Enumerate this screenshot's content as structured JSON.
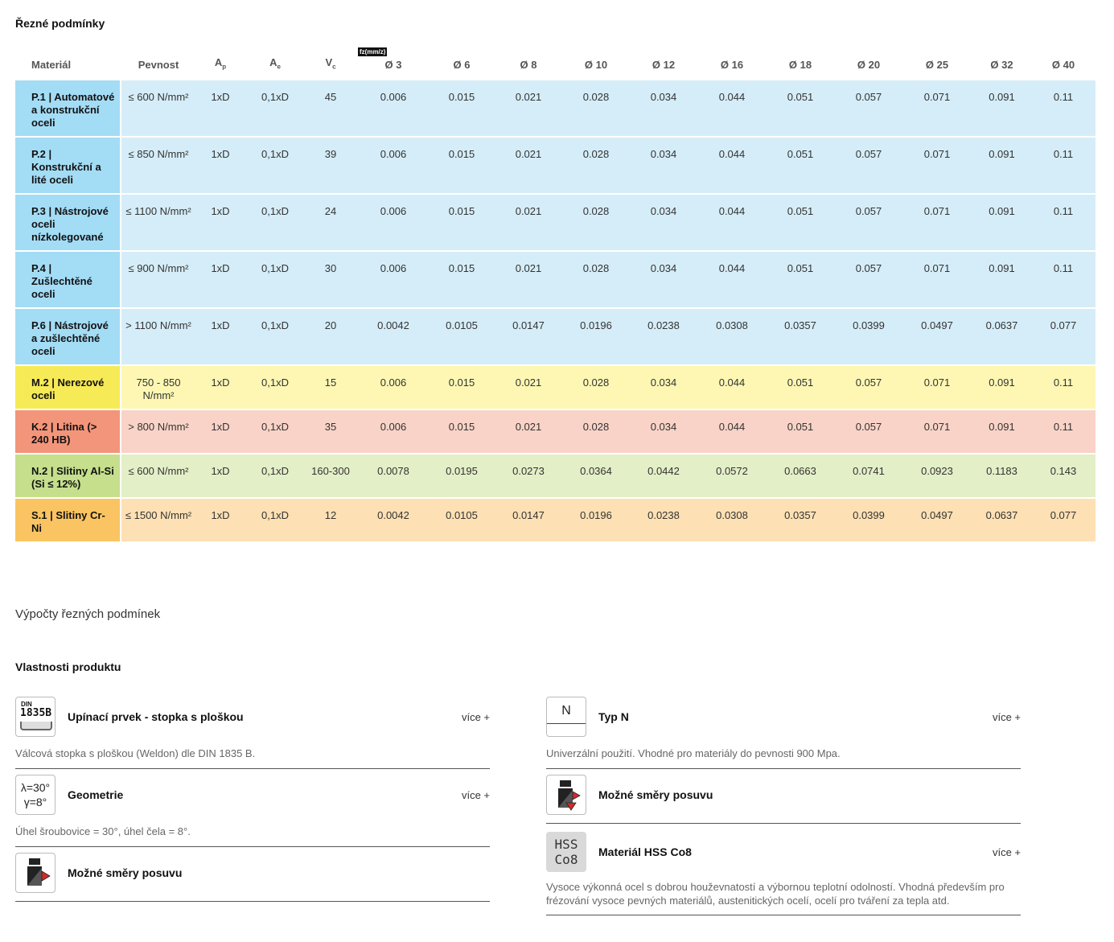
{
  "cutting": {
    "title": "Řezné podmínky",
    "headers": {
      "material": "Materiál",
      "strength": "Pevnost",
      "ap": "A",
      "ap_sub": "p",
      "ae": "A",
      "ae_sub": "e",
      "vc": "V",
      "vc_sub": "c",
      "fz_tag": "fz(mm/z)",
      "diameters": [
        "Ø 3",
        "Ø 6",
        "Ø 8",
        "Ø 10",
        "Ø 12",
        "Ø 16",
        "Ø 18",
        "Ø 20",
        "Ø 25",
        "Ø 32",
        "Ø 40"
      ]
    },
    "rows": [
      {
        "group": "blue",
        "material": "P.1 | Automatové a konstrukční oceli",
        "strength": "≤ 600 N/mm²",
        "ap": "1xD",
        "ae": "0,1xD",
        "vc": "45",
        "fz": [
          "0.006",
          "0.015",
          "0.021",
          "0.028",
          "0.034",
          "0.044",
          "0.051",
          "0.057",
          "0.071",
          "0.091",
          "0.11"
        ]
      },
      {
        "group": "blue",
        "material": "P.2 | Konstrukční a lité oceli",
        "strength": "≤ 850 N/mm²",
        "ap": "1xD",
        "ae": "0,1xD",
        "vc": "39",
        "fz": [
          "0.006",
          "0.015",
          "0.021",
          "0.028",
          "0.034",
          "0.044",
          "0.051",
          "0.057",
          "0.071",
          "0.091",
          "0.11"
        ]
      },
      {
        "group": "blue",
        "material": "P.3 | Nástrojové oceli nízkolegované",
        "strength": "≤ 1100 N/mm²",
        "ap": "1xD",
        "ae": "0,1xD",
        "vc": "24",
        "fz": [
          "0.006",
          "0.015",
          "0.021",
          "0.028",
          "0.034",
          "0.044",
          "0.051",
          "0.057",
          "0.071",
          "0.091",
          "0.11"
        ]
      },
      {
        "group": "blue",
        "material": "P.4 | Zušlechtěné oceli",
        "strength": "≤ 900 N/mm²",
        "ap": "1xD",
        "ae": "0,1xD",
        "vc": "30",
        "fz": [
          "0.006",
          "0.015",
          "0.021",
          "0.028",
          "0.034",
          "0.044",
          "0.051",
          "0.057",
          "0.071",
          "0.091",
          "0.11"
        ]
      },
      {
        "group": "blue",
        "material": "P.6 | Nástrojové a zušlechtěné oceli",
        "strength": "> 1100 N/mm²",
        "ap": "1xD",
        "ae": "0,1xD",
        "vc": "20",
        "fz": [
          "0.0042",
          "0.0105",
          "0.0147",
          "0.0196",
          "0.0238",
          "0.0308",
          "0.0357",
          "0.0399",
          "0.0497",
          "0.0637",
          "0.077"
        ]
      },
      {
        "group": "yellow",
        "material": "M.2 | Nerezové oceli",
        "strength": "750 - 850 N/mm²",
        "ap": "1xD",
        "ae": "0,1xD",
        "vc": "15",
        "fz": [
          "0.006",
          "0.015",
          "0.021",
          "0.028",
          "0.034",
          "0.044",
          "0.051",
          "0.057",
          "0.071",
          "0.091",
          "0.11"
        ]
      },
      {
        "group": "red",
        "material": "K.2 | Litina (> 240 HB)",
        "strength": "> 800 N/mm²",
        "ap": "1xD",
        "ae": "0,1xD",
        "vc": "35",
        "fz": [
          "0.006",
          "0.015",
          "0.021",
          "0.028",
          "0.034",
          "0.044",
          "0.051",
          "0.057",
          "0.071",
          "0.091",
          "0.11"
        ]
      },
      {
        "group": "green",
        "material": "N.2 | Slitiny Al-Si (Si ≤ 12%)",
        "strength": "≤ 600 N/mm²",
        "ap": "1xD",
        "ae": "0,1xD",
        "vc": "160-300",
        "fz": [
          "0.0078",
          "0.0195",
          "0.0273",
          "0.0364",
          "0.0442",
          "0.0572",
          "0.0663",
          "0.0741",
          "0.0923",
          "0.1183",
          "0.143"
        ]
      },
      {
        "group": "orange",
        "material": "S.1 | Slitiny Cr-Ni",
        "strength": "≤ 1500 N/mm²",
        "ap": "1xD",
        "ae": "0,1xD",
        "vc": "12",
        "fz": [
          "0.0042",
          "0.0105",
          "0.0147",
          "0.0196",
          "0.0238",
          "0.0308",
          "0.0357",
          "0.0399",
          "0.0497",
          "0.0637",
          "0.077"
        ]
      }
    ]
  },
  "calc_link": "Výpočty řezných podmínek",
  "properties": {
    "title": "Vlastnosti produktu",
    "left": [
      {
        "icon": "din-1835b-icon",
        "icon_text": [
          "DIN",
          "1835B"
        ],
        "name": "Upínací prvek - stopka s ploškou",
        "more": "více +",
        "desc": "Válcová stopka s ploškou (Weldon) dle DIN 1835 B."
      },
      {
        "icon": "geometry-icon",
        "icon_text": [
          "λ=30°",
          "γ=8°"
        ],
        "name": "Geometrie",
        "more": "více +",
        "desc": "Úhel šroubovice = 30°, úhel čela = 8°."
      },
      {
        "icon": "feed-direction-icon",
        "icon_text": [],
        "name": "Možné směry posuvu",
        "more": "",
        "desc": ""
      }
    ],
    "right": [
      {
        "icon": "type-n-icon",
        "icon_text": [
          "N"
        ],
        "name": "Typ N",
        "more": "více +",
        "desc": "Univerzální použití. Vhodné pro materiály do pevnosti 900 Mpa."
      },
      {
        "icon": "feed-directions-icon",
        "icon_text": [],
        "name": "Možné směry posuvu",
        "more": "",
        "desc": ""
      },
      {
        "icon": "hss-co8-icon",
        "icon_text": [
          "HSS",
          "Co8"
        ],
        "name": "Materiál HSS Co8",
        "more": "více +",
        "desc": "Vysoce výkonná ocel s dobrou houževnatostí a výbornou teplotní odolností. Vhodná především pro frézování vysoce pevných materiálů, austenitických ocelí, ocelí pro tváření za tepla atd."
      }
    ]
  }
}
